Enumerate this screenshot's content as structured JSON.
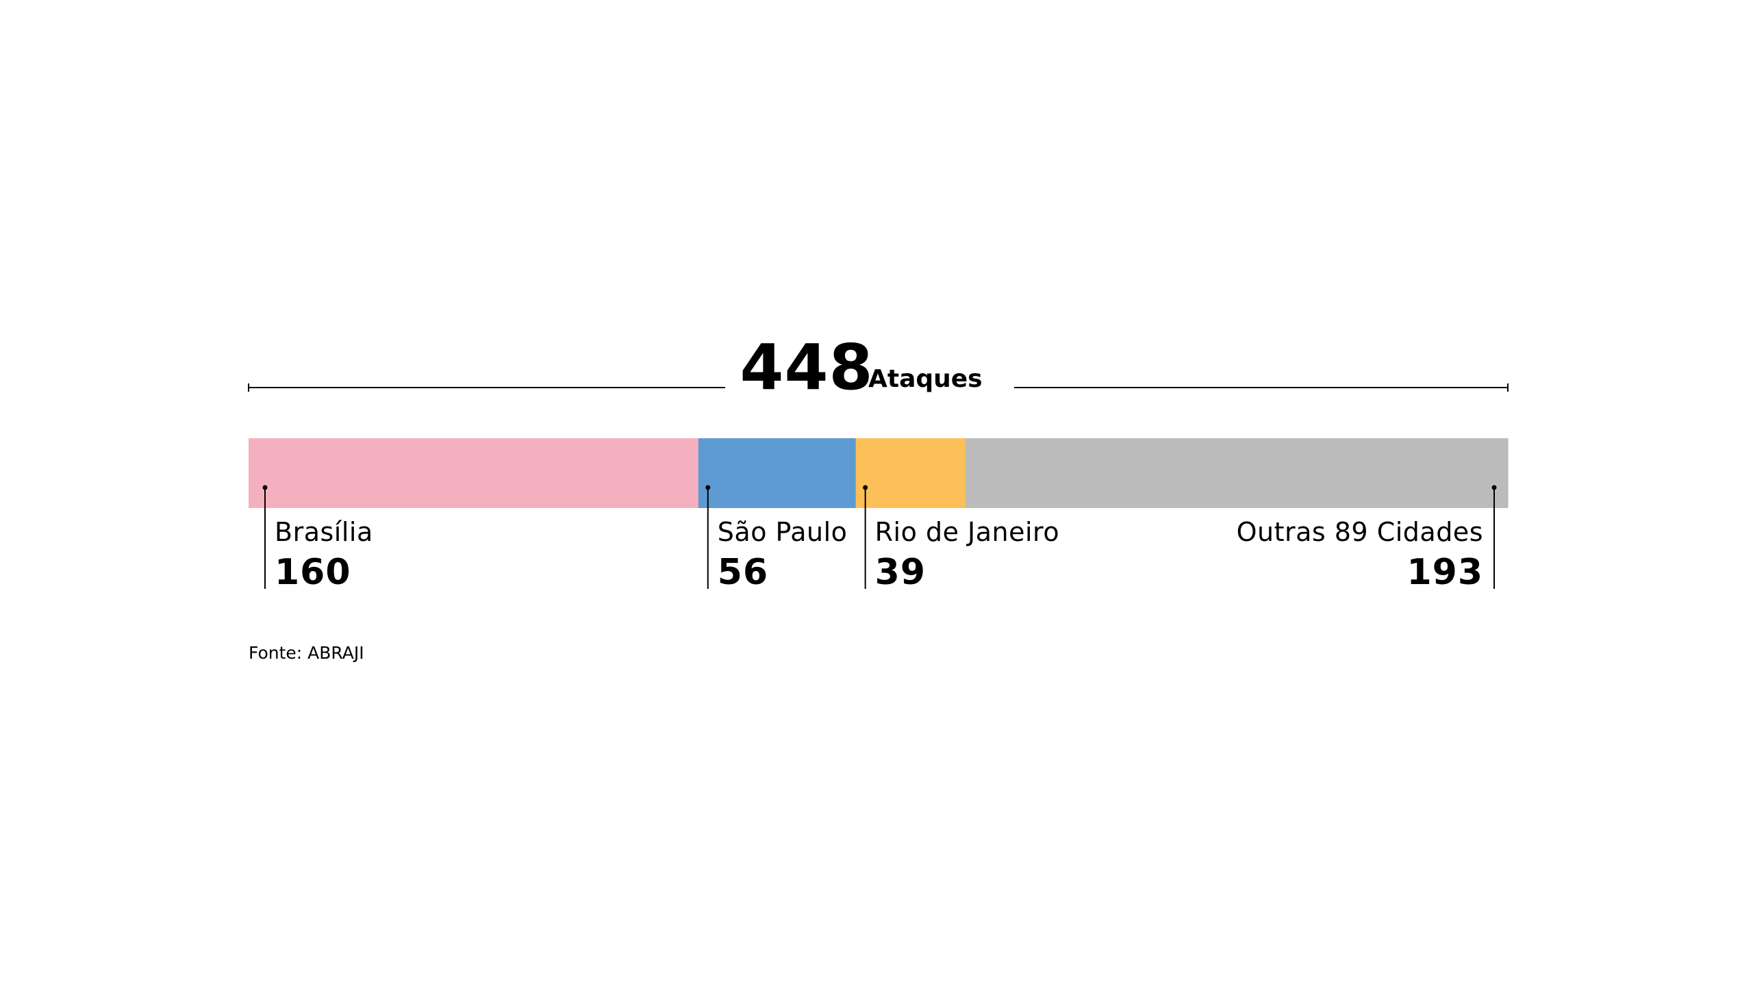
{
  "total": {
    "value": "448",
    "unit": "Ataques"
  },
  "source": "Fonte: ABRAJI",
  "chart_data": {
    "type": "bar",
    "orientation": "horizontal-stacked",
    "total": 448,
    "total_label": "Ataques",
    "categories": [
      "Brasília",
      "São Paulo",
      "Rio de Janeiro",
      "Outras 89 Cidades"
    ],
    "values": [
      160,
      56,
      39,
      193
    ],
    "colors": [
      "#f5b0c0",
      "#5f9bd3",
      "#fdbf58",
      "#bcbbbc"
    ],
    "source": "Fonte: ABRAJI"
  }
}
